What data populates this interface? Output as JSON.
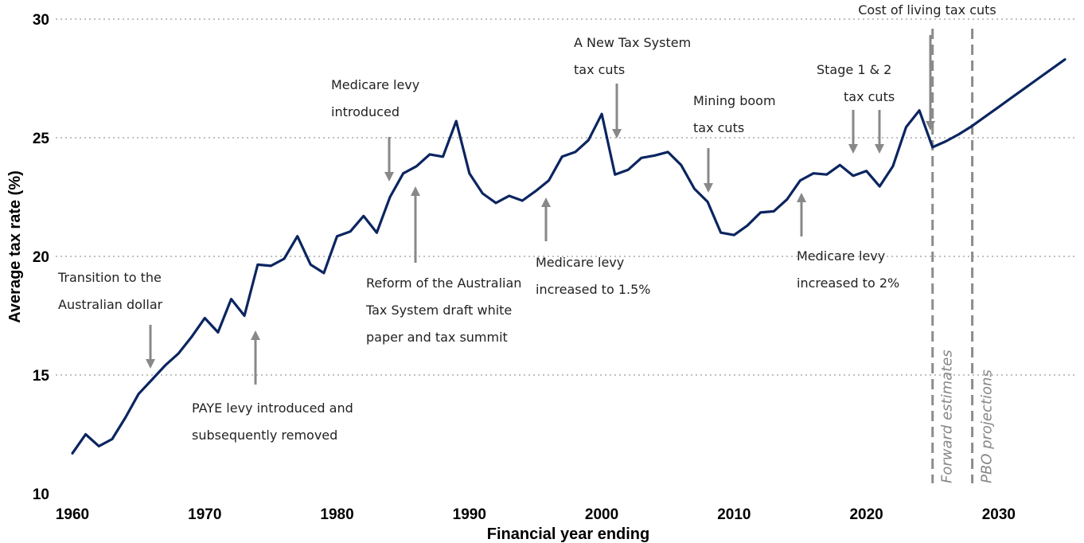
{
  "chart_data": {
    "type": "line",
    "title": "",
    "xlabel": "Financial year ending",
    "ylabel": "Average tax rate (%)",
    "xlim": [
      1960,
      2035
    ],
    "ylim": [
      10,
      30
    ],
    "xticks": [
      1960,
      1970,
      1980,
      1990,
      2000,
      2010,
      2020,
      2030
    ],
    "yticks": [
      10,
      15,
      20,
      25,
      30
    ],
    "grid": "horizontal dotted",
    "line_color": "#0b2560",
    "series": [
      {
        "x": [
          1960,
          1961,
          1962,
          1963,
          1964,
          1965,
          1966,
          1967,
          1968,
          1969,
          1970,
          1971,
          1972,
          1973,
          1974,
          1975,
          1976,
          1977,
          1978,
          1979,
          1980,
          1981,
          1982,
          1983,
          1984,
          1985,
          1986,
          1987,
          1988,
          1989,
          1990,
          1991,
          1992,
          1993,
          1994,
          1995,
          1996,
          1997,
          1998,
          1999,
          2000,
          2001,
          2002,
          2003,
          2004,
          2005,
          2006,
          2007,
          2008,
          2009,
          2010,
          2011,
          2012,
          2013,
          2014,
          2015,
          2016,
          2017,
          2018,
          2019,
          2020,
          2021,
          2022,
          2023,
          2024,
          2025,
          2026,
          2027,
          2028,
          2029,
          2030,
          2031,
          2032,
          2033,
          2034,
          2035
        ],
        "values": [
          11.7,
          12.5,
          12.0,
          12.3,
          13.2,
          14.2,
          14.8,
          15.4,
          15.9,
          16.6,
          17.4,
          16.8,
          18.2,
          17.5,
          19.65,
          19.6,
          19.9,
          20.85,
          19.65,
          19.3,
          20.85,
          21.05,
          21.7,
          21.0,
          22.5,
          23.5,
          23.8,
          24.3,
          24.2,
          25.7,
          23.5,
          22.65,
          22.25,
          22.55,
          22.35,
          22.75,
          23.2,
          24.2,
          24.4,
          24.9,
          26.0,
          23.45,
          23.65,
          24.15,
          24.25,
          24.4,
          23.85,
          22.85,
          22.3,
          21.0,
          20.9,
          21.3,
          21.85,
          21.9,
          22.4,
          23.2,
          23.5,
          23.45,
          23.85,
          23.4,
          23.6,
          22.95,
          23.8,
          25.45,
          26.15,
          24.6,
          24.85,
          25.15,
          25.5,
          25.9,
          26.3,
          26.7,
          27.1,
          27.5,
          27.9,
          28.3
        ]
      }
    ],
    "vertical_lines": [
      {
        "x": 2025,
        "label": "Forward estimates"
      },
      {
        "x": 2028,
        "label": "PBO projections"
      }
    ],
    "annotations": [
      {
        "lines": [
          "Transition to the",
          "Australian dollar"
        ],
        "x": 1966,
        "arrow": "down"
      },
      {
        "lines": [
          "PAYE levy introduced and",
          "subsequently removed"
        ],
        "x": 1974,
        "arrow": "up"
      },
      {
        "lines": [
          "Medicare levy",
          "introduced"
        ],
        "x": 1984,
        "arrow": "down"
      },
      {
        "lines": [
          "Reform of the Australian",
          "Tax System draft white",
          "paper and tax summit"
        ],
        "x": 1986,
        "arrow": "up"
      },
      {
        "lines": [
          "Medicare levy",
          "increased to 1.5%"
        ],
        "x": 1996,
        "arrow": "up"
      },
      {
        "lines": [
          "A New Tax System",
          "tax cuts"
        ],
        "x": 2001,
        "arrow": "down"
      },
      {
        "lines": [
          "Mining boom",
          "tax cuts"
        ],
        "x": 2008,
        "arrow": "down"
      },
      {
        "lines": [
          "Medicare levy",
          "increased to 2%"
        ],
        "x": 2015,
        "arrow": "up"
      },
      {
        "lines": [
          "Stage 1 & 2",
          "tax cuts"
        ],
        "x": [
          2019,
          2021
        ],
        "arrow": "down"
      },
      {
        "lines": [
          "Cost of living tax cuts"
        ],
        "x": 2025,
        "arrow": "down"
      }
    ]
  }
}
